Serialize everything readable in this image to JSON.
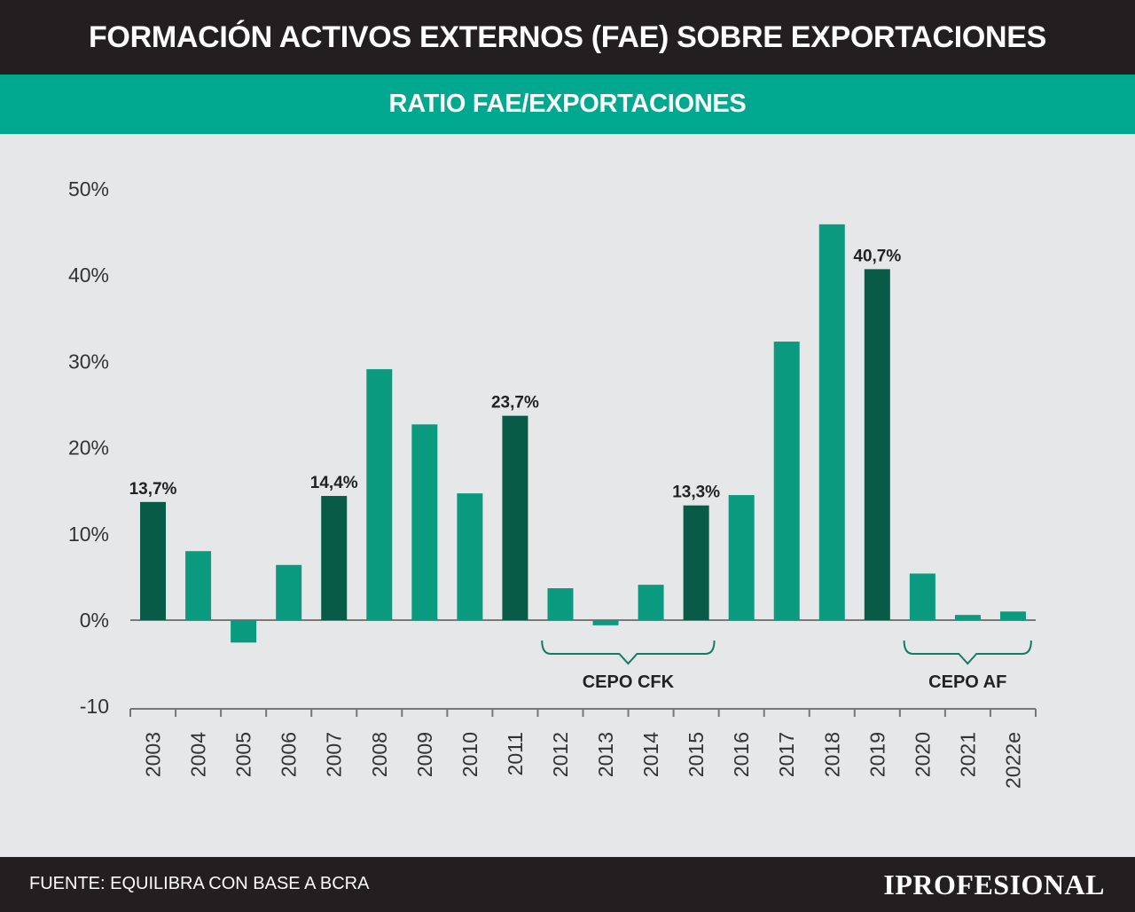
{
  "header": {
    "title": "FORMACIÓN ACTIVOS EXTERNOS (FAE) SOBRE EXPORTACIONES"
  },
  "subheader": {
    "title": "RATIO FAE/EXPORTACIONES"
  },
  "footer": {
    "source": "FUENTE: EQUILIBRA CON BASE A BCRA",
    "logo": "IPROFESIONAL"
  },
  "colors": {
    "header_bg": "#231f20",
    "subheader_bg": "#00a88f",
    "bar_light": "#0a9a80",
    "bar_dark": "#075b47",
    "bracket": "#147a63",
    "background": "#e6e7e9"
  },
  "chart_data": {
    "type": "bar",
    "categories": [
      "2003",
      "2004",
      "2005",
      "2006",
      "2007",
      "2008",
      "2009",
      "2010",
      "2011",
      "2012",
      "2013",
      "2014",
      "2015",
      "2016",
      "2017",
      "2018",
      "2019",
      "2020",
      "2021",
      "2022e"
    ],
    "values": [
      13.7,
      8.0,
      -2.6,
      6.4,
      14.4,
      29.1,
      22.7,
      14.7,
      23.7,
      3.7,
      -0.6,
      4.1,
      13.3,
      14.5,
      32.3,
      45.9,
      40.7,
      5.4,
      0.6,
      1.0
    ],
    "highlight": [
      true,
      false,
      false,
      false,
      true,
      false,
      false,
      false,
      true,
      false,
      false,
      false,
      true,
      false,
      false,
      false,
      true,
      false,
      false,
      false
    ],
    "data_labels": {
      "2003": "13,7%",
      "2007": "14,4%",
      "2011": "23,7%",
      "2015": "13,3%",
      "2019": "40,7%"
    },
    "ylim": [
      -10,
      50
    ],
    "yticks": [
      -10,
      0,
      10,
      20,
      30,
      40,
      50
    ],
    "ytick_labels": [
      "-10",
      "0%",
      "10%",
      "20%",
      "30%",
      "40%",
      "50%"
    ],
    "annotations": [
      {
        "label": "CEPO CFK",
        "from": "2012",
        "to": "2015"
      },
      {
        "label": "CEPO AF",
        "from": "2020",
        "to": "2022e"
      }
    ],
    "grid": false,
    "xlabel": "",
    "ylabel": ""
  }
}
